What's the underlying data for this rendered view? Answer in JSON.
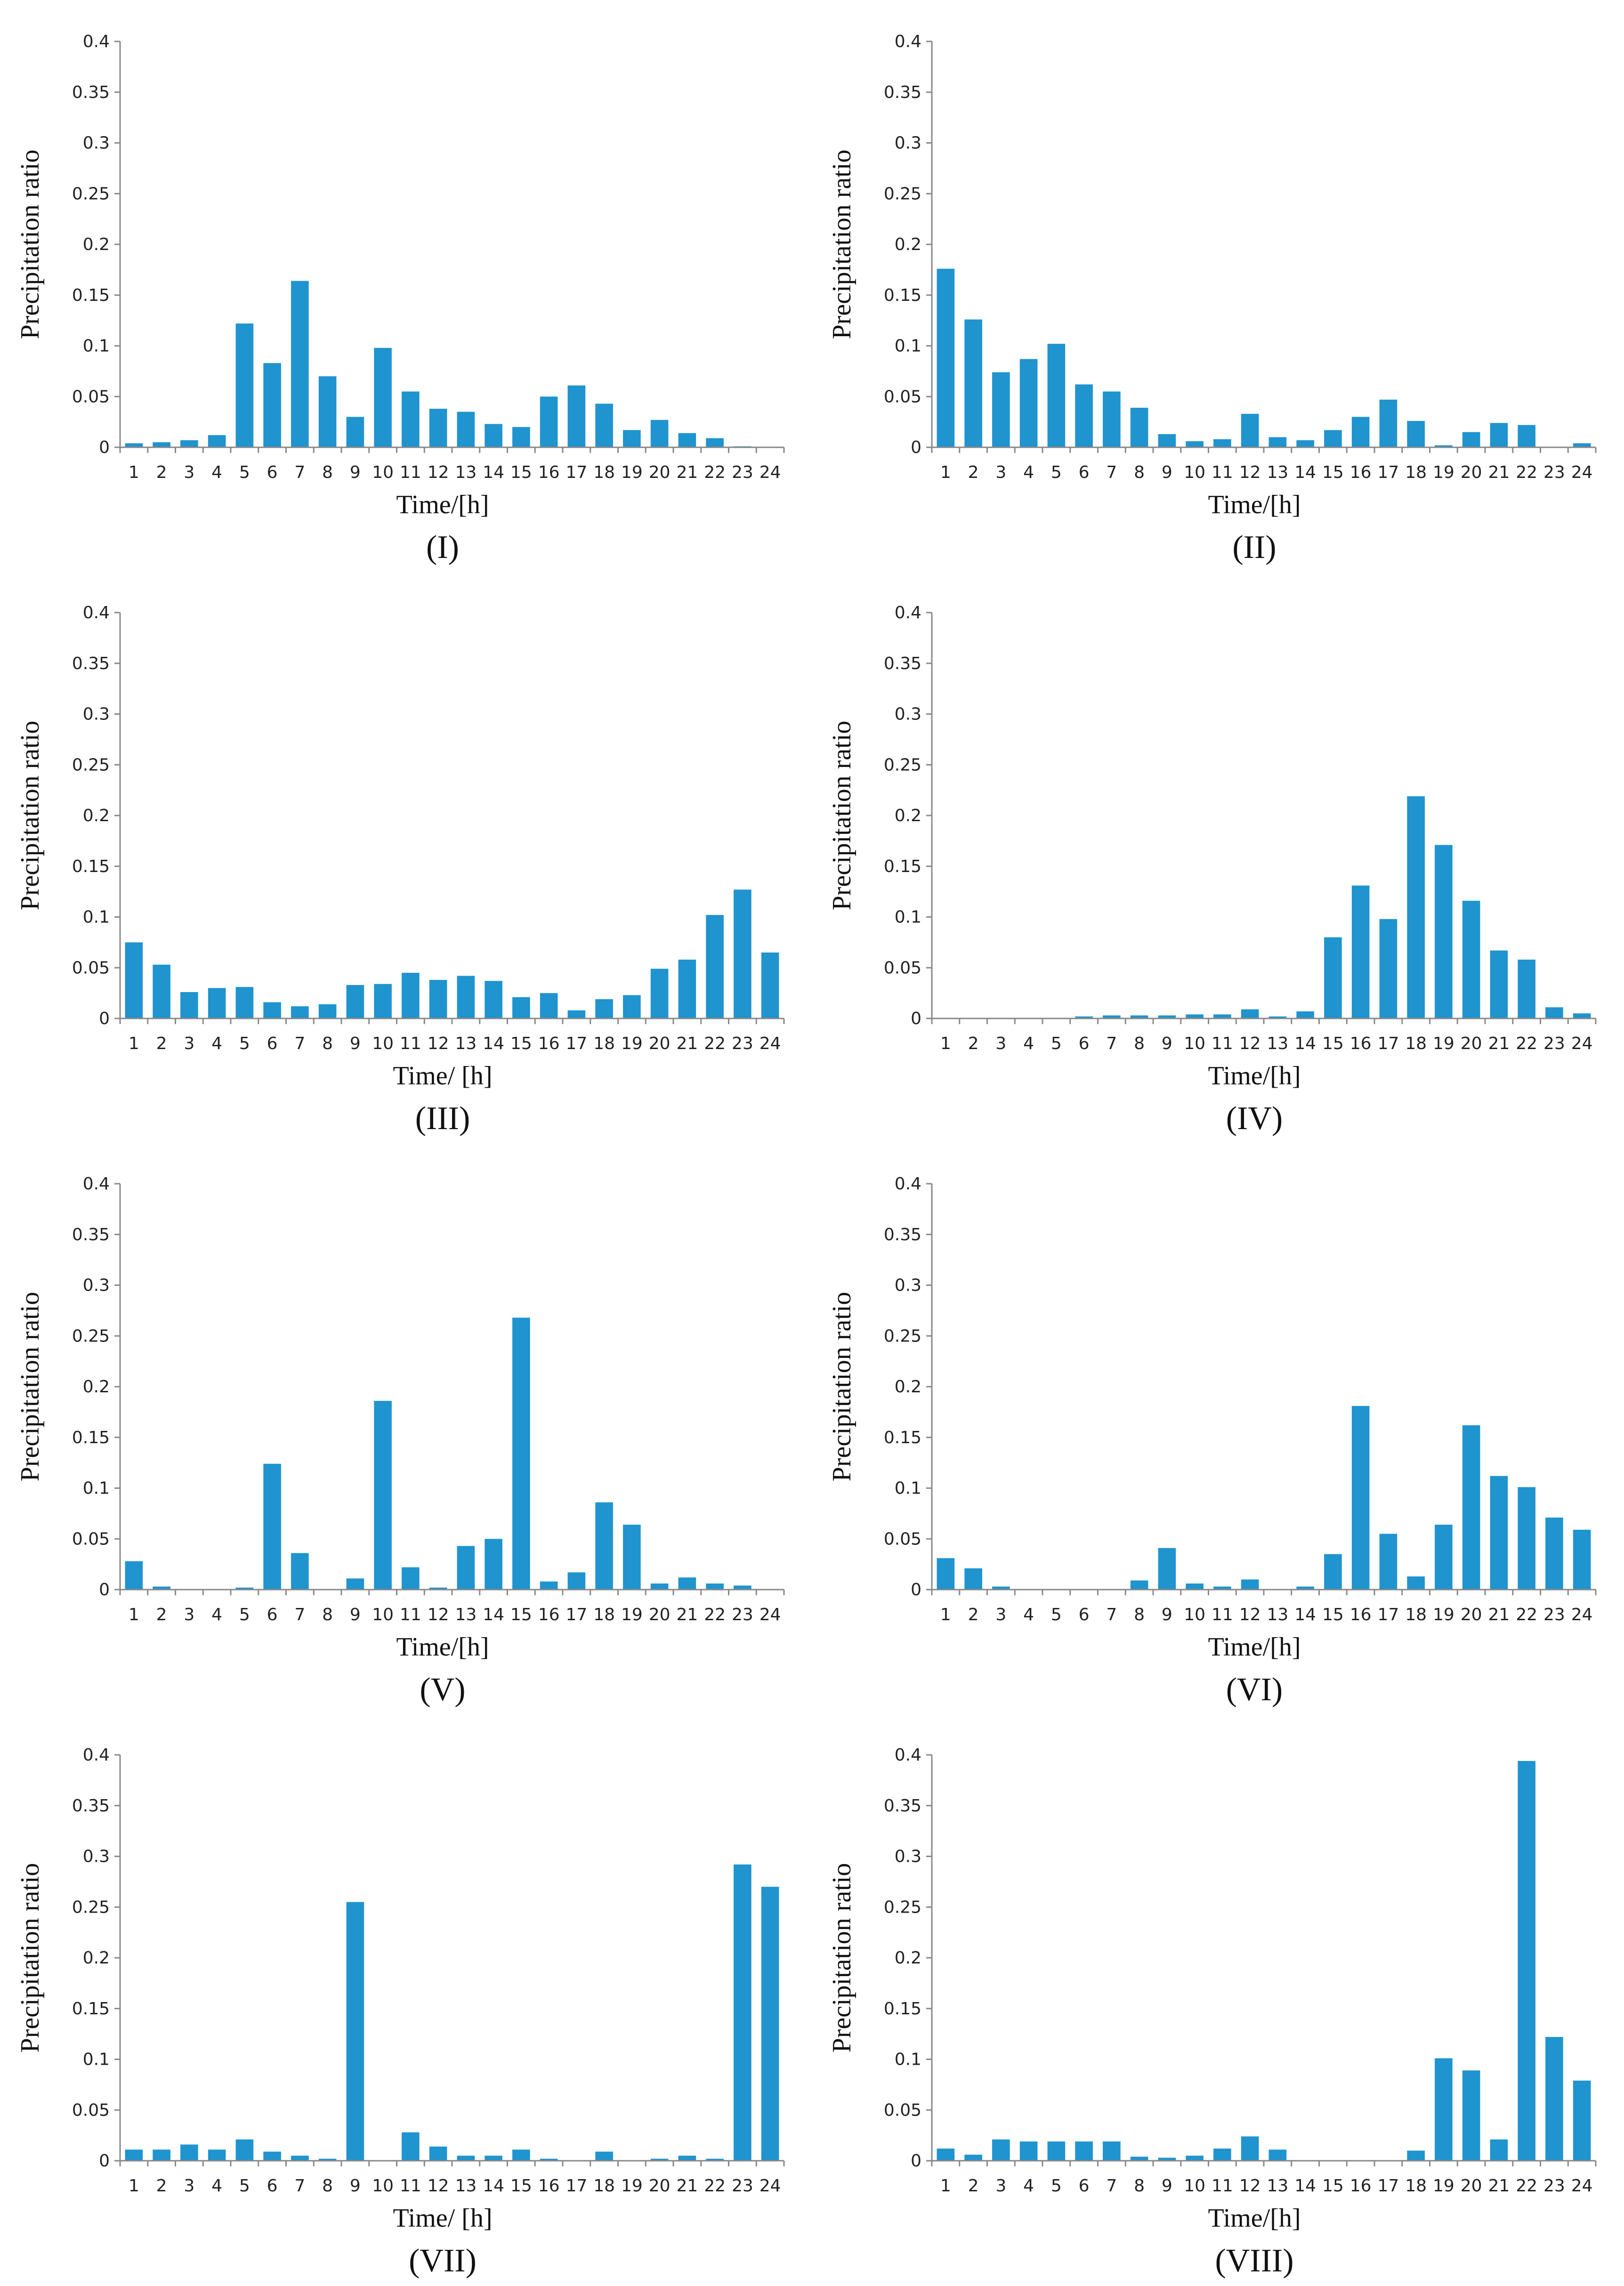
{
  "colors": {
    "bar": "#1f94cf",
    "axis": "#888888",
    "text": "#222222"
  },
  "chart_data": [
    {
      "type": "bar",
      "title": "(I)",
      "xlabel": "Time/[h]",
      "ylabel": "Precipitation ratio",
      "ylim": [
        0,
        0.4
      ],
      "yticks": [
        "0",
        "0.05",
        "0.1",
        "0.15",
        "0.2",
        "0.25",
        "0.3",
        "0.35",
        "0.4"
      ],
      "categories": [
        "1",
        "2",
        "3",
        "4",
        "5",
        "6",
        "7",
        "8",
        "9",
        "10",
        "11",
        "12",
        "13",
        "14",
        "15",
        "16",
        "17",
        "18",
        "19",
        "20",
        "21",
        "22",
        "23",
        "24"
      ],
      "values": [
        0.004,
        0.005,
        0.007,
        0.012,
        0.122,
        0.083,
        0.164,
        0.07,
        0.03,
        0.098,
        0.055,
        0.038,
        0.035,
        0.023,
        0.02,
        0.05,
        0.061,
        0.043,
        0.017,
        0.027,
        0.014,
        0.009,
        0.001,
        0
      ]
    },
    {
      "type": "bar",
      "title": "(II)",
      "xlabel": "Time/[h]",
      "ylabel": "Precipitation ratio",
      "ylim": [
        0,
        0.4
      ],
      "yticks": [
        "0",
        "0.05",
        "0.1",
        "0.15",
        "0.2",
        "0.25",
        "0.3",
        "0.35",
        "0.4"
      ],
      "categories": [
        "1",
        "2",
        "3",
        "4",
        "5",
        "6",
        "7",
        "8",
        "9",
        "10",
        "11",
        "12",
        "13",
        "14",
        "15",
        "16",
        "17",
        "18",
        "19",
        "20",
        "21",
        "22",
        "23",
        "24"
      ],
      "values": [
        0.176,
        0.126,
        0.074,
        0.087,
        0.102,
        0.062,
        0.055,
        0.039,
        0.013,
        0.006,
        0.008,
        0.033,
        0.01,
        0.007,
        0.017,
        0.03,
        0.047,
        0.026,
        0.002,
        0.015,
        0.024,
        0.022,
        0,
        0.004
      ]
    },
    {
      "type": "bar",
      "title": "(III)",
      "xlabel": "Time/ [h]",
      "ylabel": "Precipitation ratio",
      "ylim": [
        0,
        0.4
      ],
      "yticks": [
        "0",
        "0.05",
        "0.1",
        "0.15",
        "0.2",
        "0.25",
        "0.3",
        "0.35",
        "0.4"
      ],
      "categories": [
        "1",
        "2",
        "3",
        "4",
        "5",
        "6",
        "7",
        "8",
        "9",
        "10",
        "11",
        "12",
        "13",
        "14",
        "15",
        "16",
        "17",
        "18",
        "19",
        "20",
        "21",
        "22",
        "23",
        "24"
      ],
      "values": [
        0.075,
        0.053,
        0.026,
        0.03,
        0.031,
        0.016,
        0.012,
        0.014,
        0.033,
        0.034,
        0.045,
        0.038,
        0.042,
        0.037,
        0.021,
        0.025,
        0.008,
        0.019,
        0.023,
        0.049,
        0.058,
        0.102,
        0.127,
        0.065
      ]
    },
    {
      "type": "bar",
      "title": "(IV)",
      "xlabel": "Time/[h]",
      "ylabel": "Precipitation ratio",
      "ylim": [
        0,
        0.4
      ],
      "yticks": [
        "0",
        "0.05",
        "0.1",
        "0.15",
        "0.2",
        "0.25",
        "0.3",
        "0.35",
        "0.4"
      ],
      "categories": [
        "1",
        "2",
        "3",
        "4",
        "5",
        "6",
        "7",
        "8",
        "9",
        "10",
        "11",
        "12",
        "13",
        "14",
        "15",
        "16",
        "17",
        "18",
        "19",
        "20",
        "21",
        "22",
        "23",
        "24"
      ],
      "values": [
        0,
        0,
        0,
        0,
        0,
        0.002,
        0.003,
        0.003,
        0.003,
        0.004,
        0.004,
        0.009,
        0.002,
        0.007,
        0.08,
        0.131,
        0.098,
        0.219,
        0.171,
        0.116,
        0.067,
        0.058,
        0.011,
        0.005
      ]
    },
    {
      "type": "bar",
      "title": "(V)",
      "xlabel": "Time/[h]",
      "ylabel": "Precipitation ratio",
      "ylim": [
        0,
        0.4
      ],
      "yticks": [
        "0",
        "0.05",
        "0.1",
        "0.15",
        "0.2",
        "0.25",
        "0.3",
        "0.35",
        "0.4"
      ],
      "categories": [
        "1",
        "2",
        "3",
        "4",
        "5",
        "6",
        "7",
        "8",
        "9",
        "10",
        "11",
        "12",
        "13",
        "14",
        "15",
        "16",
        "17",
        "18",
        "19",
        "20",
        "21",
        "22",
        "23",
        "24"
      ],
      "values": [
        0.028,
        0.003,
        0,
        0,
        0.002,
        0.124,
        0.036,
        0,
        0.011,
        0.186,
        0.022,
        0.002,
        0.043,
        0.05,
        0.268,
        0.008,
        0.017,
        0.086,
        0.064,
        0.006,
        0.012,
        0.006,
        0.004,
        0
      ]
    },
    {
      "type": "bar",
      "title": "(VI)",
      "xlabel": "Time/[h]",
      "ylabel": "Precipitation ratio",
      "ylim": [
        0,
        0.4
      ],
      "yticks": [
        "0",
        "0.05",
        "0.1",
        "0.15",
        "0.2",
        "0.25",
        "0.3",
        "0.35",
        "0.4"
      ],
      "categories": [
        "1",
        "2",
        "3",
        "4",
        "5",
        "6",
        "7",
        "8",
        "9",
        "10",
        "11",
        "12",
        "13",
        "14",
        "15",
        "16",
        "17",
        "18",
        "19",
        "20",
        "21",
        "22",
        "23",
        "24"
      ],
      "values": [
        0.031,
        0.021,
        0.003,
        0,
        0,
        0,
        0,
        0.009,
        0.041,
        0.006,
        0.003,
        0.01,
        0,
        0.003,
        0.035,
        0.181,
        0.055,
        0.013,
        0.064,
        0.162,
        0.112,
        0.101,
        0.071,
        0.059
      ]
    },
    {
      "type": "bar",
      "title": "(VII)",
      "xlabel": "Time/ [h]",
      "ylabel": "Precipitation ratio",
      "ylim": [
        0,
        0.4
      ],
      "yticks": [
        "0",
        "0.05",
        "0.1",
        "0.15",
        "0.2",
        "0.25",
        "0.3",
        "0.35",
        "0.4"
      ],
      "categories": [
        "1",
        "2",
        "3",
        "4",
        "5",
        "6",
        "7",
        "8",
        "9",
        "10",
        "11",
        "12",
        "13",
        "14",
        "15",
        "16",
        "17",
        "18",
        "19",
        "20",
        "21",
        "22",
        "23",
        "24"
      ],
      "values": [
        0.011,
        0.011,
        0.016,
        0.011,
        0.021,
        0.009,
        0.005,
        0.002,
        0.255,
        0,
        0.028,
        0.014,
        0.005,
        0.005,
        0.011,
        0.002,
        0,
        0.009,
        0,
        0.002,
        0.005,
        0.002,
        0.292,
        0.27
      ]
    },
    {
      "type": "bar",
      "title": "(VIII)",
      "xlabel": "Time/[h]",
      "ylabel": "Precipitation ratio",
      "ylim": [
        0,
        0.4
      ],
      "yticks": [
        "0",
        "0.05",
        "0.1",
        "0.15",
        "0.2",
        "0.25",
        "0.3",
        "0.35",
        "0.4"
      ],
      "categories": [
        "1",
        "2",
        "3",
        "4",
        "5",
        "6",
        "7",
        "8",
        "9",
        "10",
        "11",
        "12",
        "13",
        "14",
        "15",
        "16",
        "17",
        "18",
        "19",
        "20",
        "21",
        "22",
        "23",
        "24"
      ],
      "values": [
        0.012,
        0.006,
        0.021,
        0.019,
        0.019,
        0.019,
        0.019,
        0.004,
        0.003,
        0.005,
        0.012,
        0.024,
        0.011,
        0,
        0,
        0,
        0,
        0.01,
        0.101,
        0.089,
        0.021,
        0.394,
        0.122,
        0.079
      ]
    }
  ]
}
